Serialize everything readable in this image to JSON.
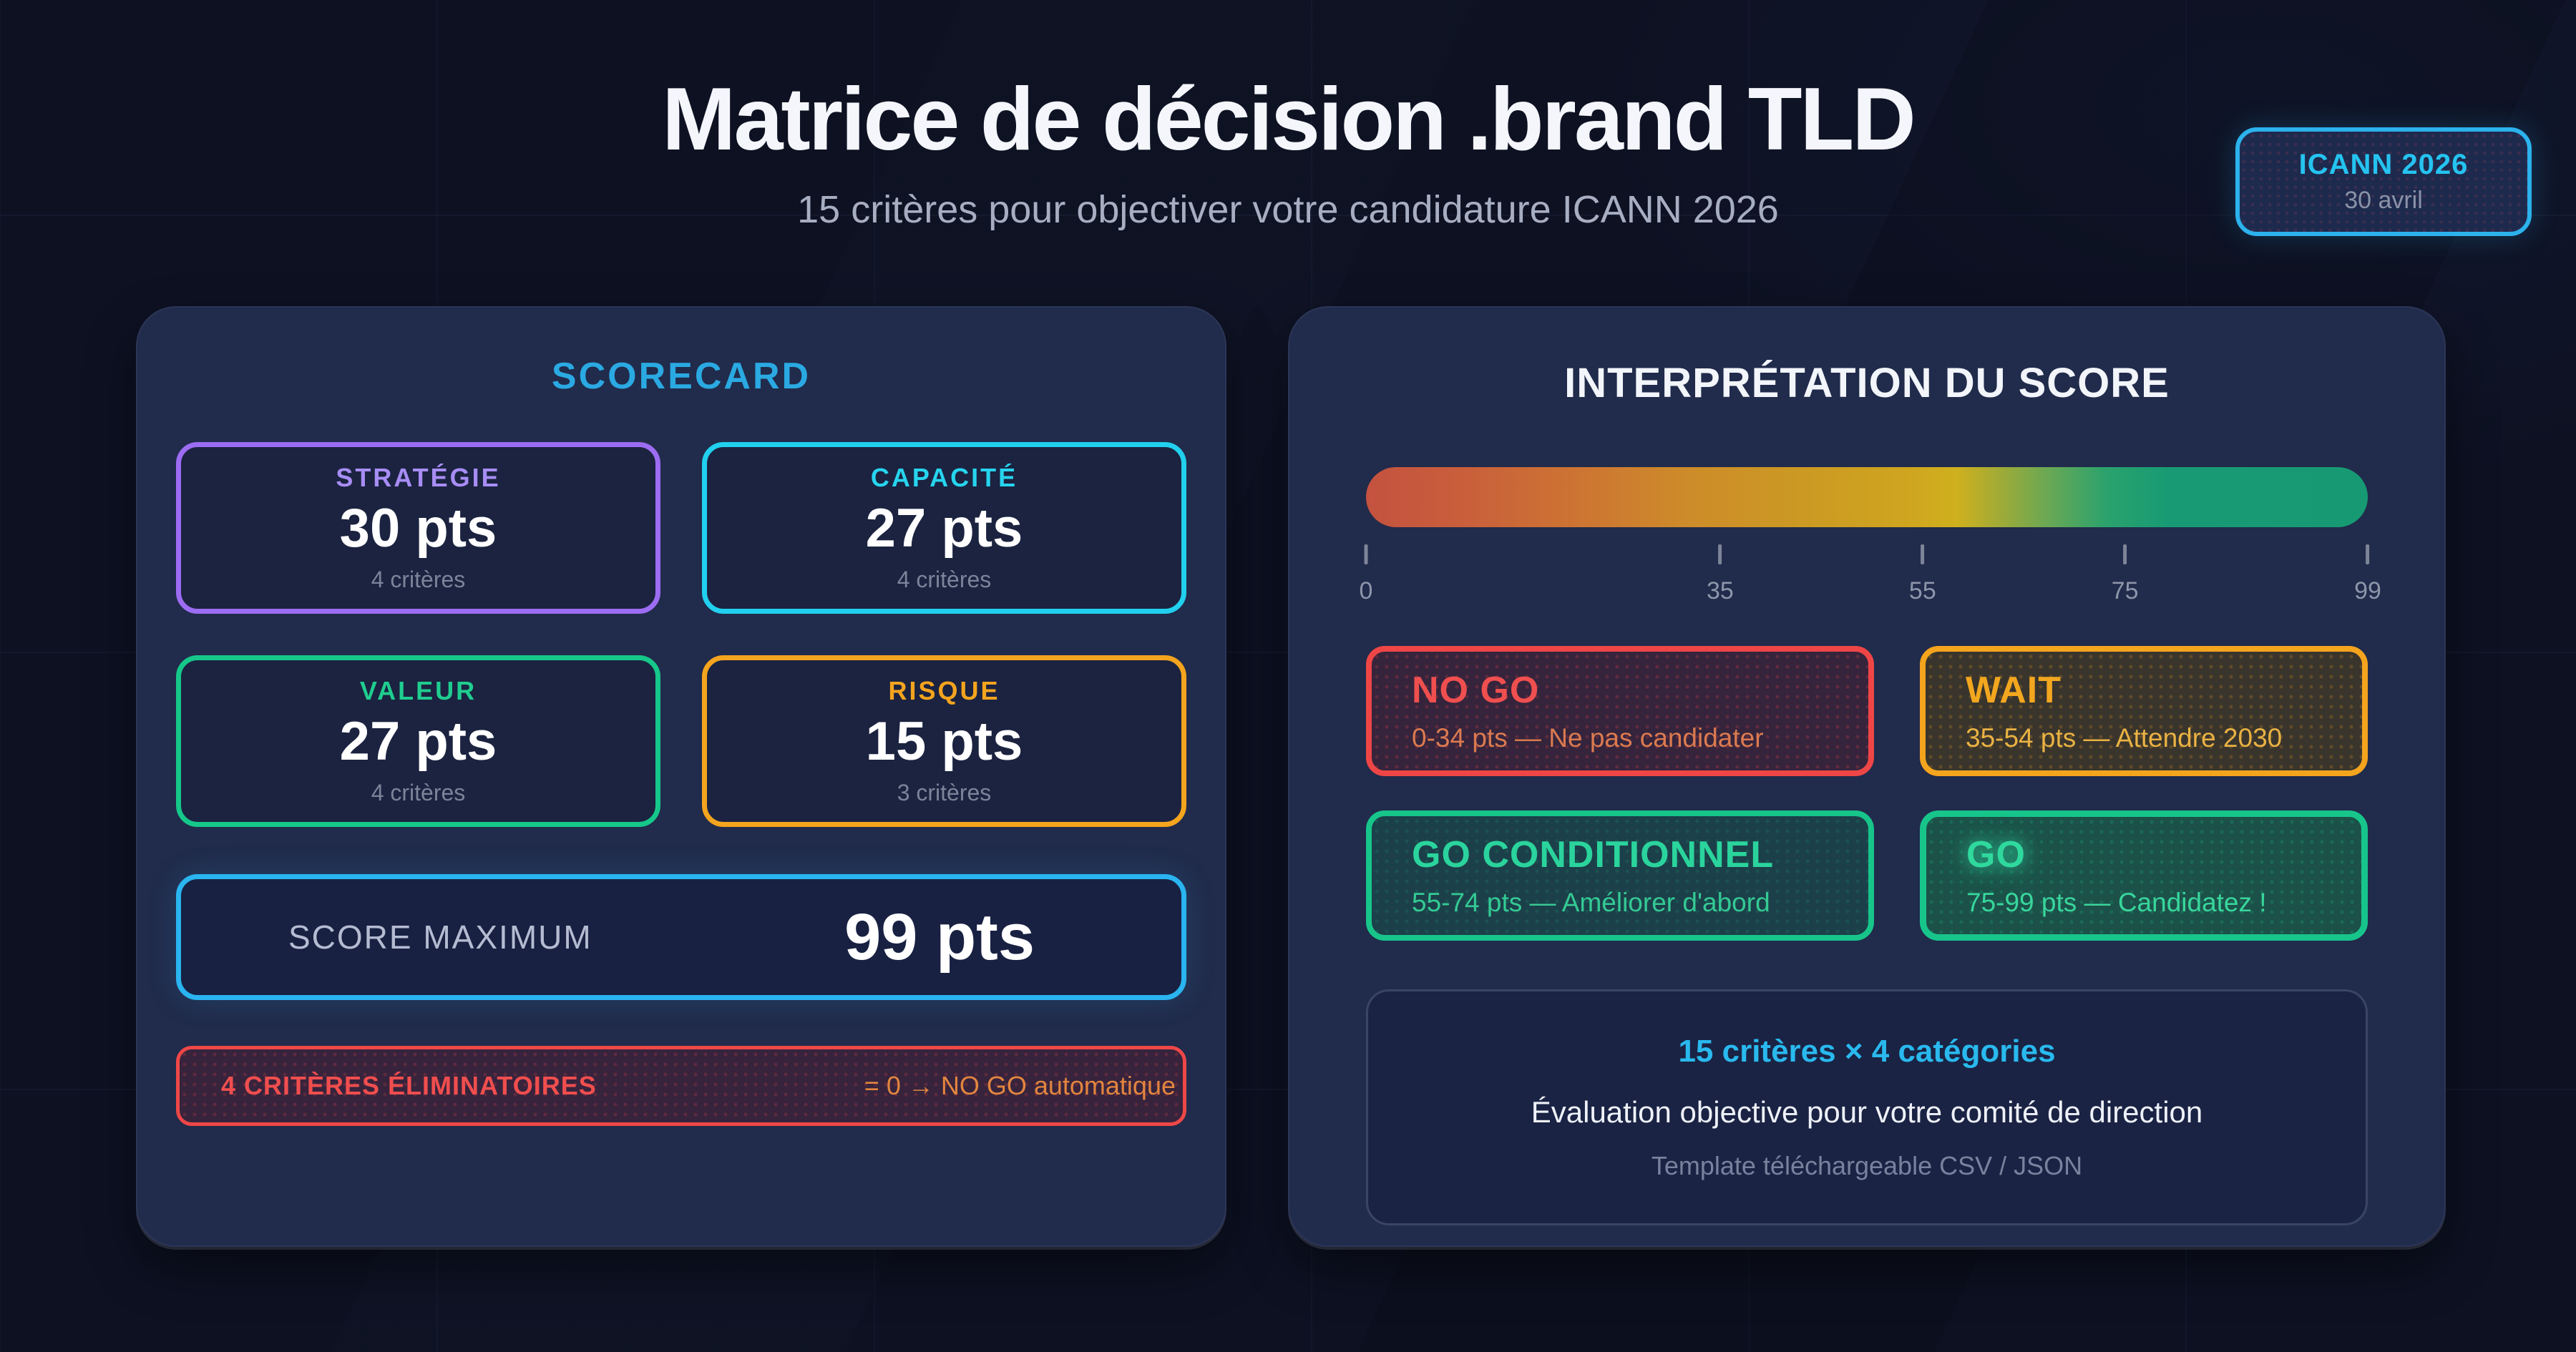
{
  "page": {
    "title": "Matrice de décision .brand TLD",
    "subtitle": "15 critères pour objectiver votre candidature ICANN 2026"
  },
  "badge": {
    "title": "ICANN 2026",
    "date": "30 avril"
  },
  "scorecard": {
    "title": "SCORECARD",
    "categories": [
      {
        "name": "STRATÉGIE",
        "points": "30 pts",
        "criteria": "4 critères",
        "color": "#9c6cf3"
      },
      {
        "name": "CAPACITÉ",
        "points": "27 pts",
        "criteria": "4 critères",
        "color": "#21d0ee"
      },
      {
        "name": "VALEUR",
        "points": "27 pts",
        "criteria": "4 critères",
        "color": "#16c78a"
      },
      {
        "name": "RISQUE",
        "points": "15 pts",
        "criteria": "3 critères",
        "color": "#f5a41e"
      }
    ],
    "score_max": {
      "label": "SCORE MAXIMUM",
      "value": "99 pts",
      "border_color": "#2ab4f0"
    },
    "eliminatory": {
      "label": "4 CRITÈRES ÉLIMINATOIRES",
      "rule": "= 0 → NO GO automatique",
      "color": "#ee4747"
    }
  },
  "interpretation": {
    "title": "INTERPRÉTATION DU SCORE",
    "scale": {
      "min": 0,
      "max": 99,
      "ticks": [
        0,
        35,
        55,
        75,
        99
      ],
      "gradient_colors": [
        "#c4523f",
        "#cd8d29",
        "#cfb01e",
        "#179a73"
      ]
    },
    "verdicts": [
      {
        "name": "NO GO",
        "range": "0-34 pts — Ne pas candidater",
        "color": "#ee4646"
      },
      {
        "name": "WAIT",
        "range": "35-54 pts — Attendre 2030",
        "color": "#f5a41e"
      },
      {
        "name": "GO CONDITIONNEL",
        "range": "55-74 pts — Améliorer d'abord",
        "color": "#17c58b"
      },
      {
        "name": "GO",
        "range": "75-99 pts — Candidatez !",
        "color": "#2fd99e"
      }
    ],
    "footer": {
      "line1": "15 critères × 4 catégories",
      "line2": "Évaluation objective pour votre comité de direction",
      "line3": "Template téléchargeable CSV / JSON"
    }
  }
}
